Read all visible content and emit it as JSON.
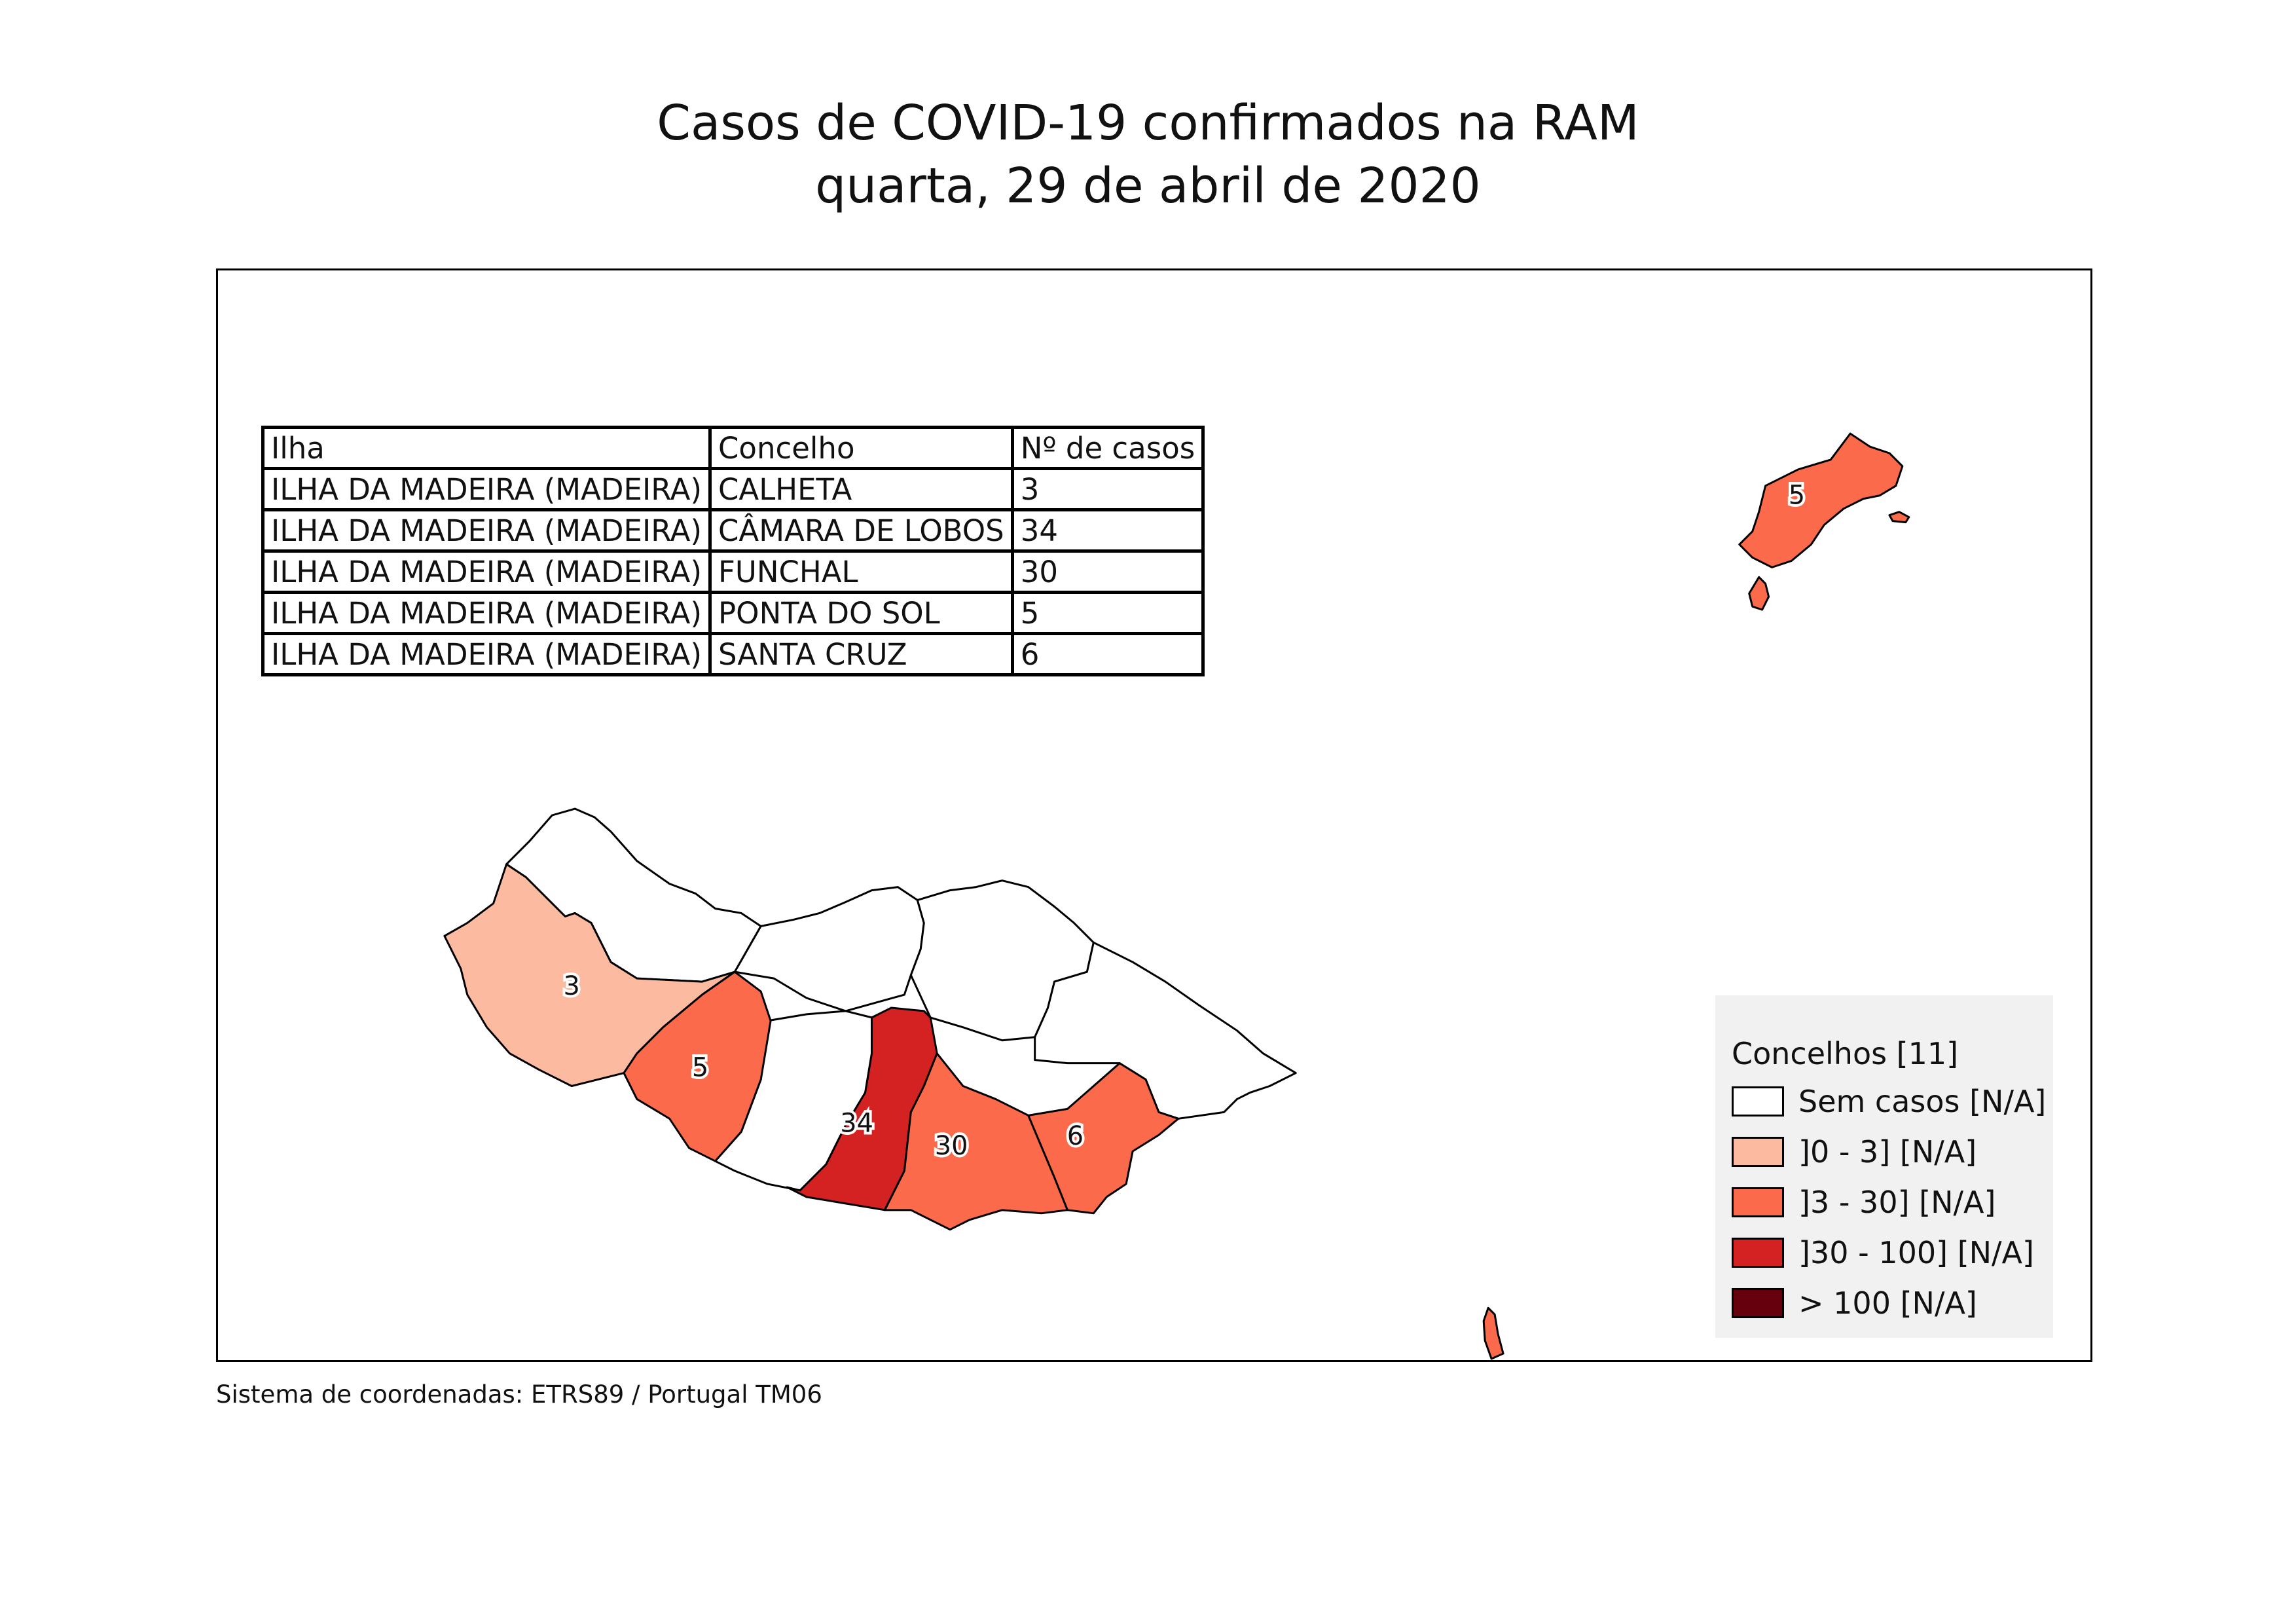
{
  "title": {
    "line1": "Casos de COVID-19 confirmados na RAM",
    "line2": "quarta, 29 de abril de 2020"
  },
  "table": {
    "headers": [
      "Ilha",
      "Concelho",
      "Nº de casos"
    ],
    "rows": [
      [
        "ILHA DA MADEIRA (MADEIRA)",
        "CALHETA",
        "3"
      ],
      [
        "ILHA DA MADEIRA (MADEIRA)",
        "CÂMARA DE LOBOS",
        "34"
      ],
      [
        "ILHA DA MADEIRA (MADEIRA)",
        "FUNCHAL",
        "30"
      ],
      [
        "ILHA DA MADEIRA (MADEIRA)",
        "PONTA DO SOL",
        "5"
      ],
      [
        "ILHA DA MADEIRA (MADEIRA)",
        "SANTA CRUZ",
        "6"
      ]
    ]
  },
  "map": {
    "region_labels": {
      "calheta": "3",
      "ponta_do_sol": "5",
      "camara_de_lobos": "34",
      "funchal": "30",
      "santa_cruz": "6",
      "porto_santo": "5"
    },
    "colors": {
      "none": "#ffffff",
      "low": "#fcbba1",
      "mid": "#fb6a4a",
      "high": "#d42121",
      "very_high": "#67000d"
    }
  },
  "legend": {
    "title": "Concelhos [11]",
    "items": [
      {
        "label": "Sem casos [N/A]",
        "color": "#ffffff"
      },
      {
        "label": "]0 - 3] [N/A]",
        "color": "#fcbba1"
      },
      {
        "label": "]3 - 30] [N/A]",
        "color": "#fb6a4a"
      },
      {
        "label": "]30 - 100] [N/A]",
        "color": "#d42121"
      },
      {
        "label": "> 100 [N/A]",
        "color": "#67000d"
      }
    ]
  },
  "footnote": "Sistema de coordenadas: ETRS89 / Portugal TM06"
}
